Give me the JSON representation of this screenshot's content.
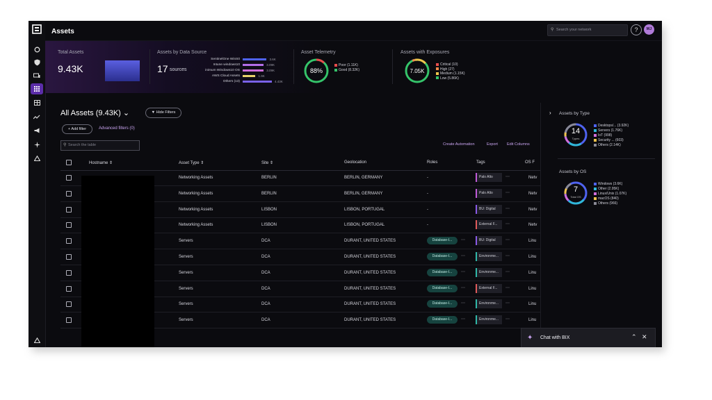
{
  "header": {
    "title": "Assets",
    "search_placeholder": "Search your network",
    "help": "?",
    "avatar": "MJ"
  },
  "summary": {
    "total_assets": {
      "label": "Total Assets",
      "value": "9.43K"
    },
    "data_sources": {
      "label": "Assets by Data Source",
      "count": "17",
      "unit": "sources",
      "items": [
        {
          "name": "SentinelOne WinS0",
          "value": "3.6K",
          "fraction": 0.82,
          "color": "#4f63f0"
        },
        {
          "name": "Intune windows10",
          "value": "3.09K",
          "fraction": 0.72,
          "color": "#b46ee8"
        },
        {
          "name": "inimum Windows10 OS",
          "value": "3.09K",
          "fraction": 0.72,
          "color": "#d06edb"
        },
        {
          "name": "AWS Cloud Assets",
          "value": "1.9K",
          "fraction": 0.44,
          "color": "#e8d36a"
        },
        {
          "name": "Others (13)",
          "value": "4.43K",
          "fraction": 1.0,
          "color": "#7a62e8"
        }
      ]
    },
    "telemetry": {
      "label": "Asset Telemetry",
      "center": "88%",
      "legend": [
        {
          "label": "Poor (1.11K)",
          "color": "#e74c4c"
        },
        {
          "label": "Good (8.32K)",
          "color": "#35c46a"
        }
      ]
    },
    "exposures": {
      "label": "Assets with Exposures",
      "center": "7.05K",
      "legend": [
        {
          "label": "Critical (10)",
          "color": "#e74c4c"
        },
        {
          "label": "High (27)",
          "color": "#f08a4b"
        },
        {
          "label": "Medium (1.15K)",
          "color": "#f0c44b"
        },
        {
          "label": "Low (5.86K)",
          "color": "#35c46a"
        }
      ]
    }
  },
  "main": {
    "title": "All Assets (9.43K)",
    "hide_filters": "Hide Filters",
    "add_filter": "+ Add filter",
    "advanced_filters": "Advanced filters (0)",
    "search_placeholder": "Search the table",
    "actions": [
      "Create Automation",
      "Export",
      "Edit Columns"
    ]
  },
  "table": {
    "columns": [
      "Hostname",
      "Asset Type",
      "Site",
      "Geolocation",
      "Roles",
      "Tags",
      "OS F"
    ],
    "rows": [
      {
        "type": "Networking Assets",
        "site": "BERLIN",
        "geo": "BERLIN, GERMANY",
        "role": "-",
        "tag": "Palo Alto",
        "tag_color": "#c05ad8",
        "os": "Netv"
      },
      {
        "type": "Networking Assets",
        "site": "BERLIN",
        "geo": "BERLIN, GERMANY",
        "role": "-",
        "tag": "Palo Alto",
        "tag_color": "#c05ad8",
        "os": "Netv"
      },
      {
        "type": "Networking Assets",
        "site": "LISBON",
        "geo": "LISBON, PORTUGAL",
        "role": "-",
        "tag": "BU: Digital",
        "tag_color": "#8a5ae8",
        "os": "Netv"
      },
      {
        "type": "Networking Assets",
        "site": "LISBON",
        "geo": "LISBON, PORTUGAL",
        "role": "-",
        "tag": "External F...",
        "tag_color": "#e05a5a",
        "os": "Netv"
      },
      {
        "type": "Servers",
        "site": "DCA",
        "geo": "DURANT, UNITED STATES",
        "role": "Database-I...",
        "tag": "BU: Digital",
        "tag_color": "#8a5ae8",
        "os": "Linu"
      },
      {
        "type": "Servers",
        "site": "DCA",
        "geo": "DURANT, UNITED STATES",
        "role": "Database-I...",
        "tag": "Environme...",
        "tag_color": "#2fb8a8",
        "os": "Linu"
      },
      {
        "type": "Servers",
        "site": "DCA",
        "geo": "DURANT, UNITED STATES",
        "role": "Database-I...",
        "tag": "Environme...",
        "tag_color": "#2fb8a8",
        "os": "Linu"
      },
      {
        "type": "Servers",
        "site": "DCA",
        "geo": "DURANT, UNITED STATES",
        "role": "Database-I...",
        "tag": "External F...",
        "tag_color": "#e05a5a",
        "os": "Linu"
      },
      {
        "type": "Servers",
        "site": "DCA",
        "geo": "DURANT, UNITED STATES",
        "role": "Database-I...",
        "tag": "Environme...",
        "tag_color": "#2fb8a8",
        "os": "Linu"
      },
      {
        "type": "Servers",
        "site": "DCA",
        "geo": "DURANT, UNITED STATES",
        "role": "Database-I...",
        "tag": "Environme...",
        "tag_color": "#2fb8a8",
        "os": "Linu"
      }
    ]
  },
  "right": {
    "by_type": {
      "title": "Assets by Type",
      "center": "14",
      "sub": "Types",
      "legend": [
        {
          "label": "Desktops/... (3.92K)",
          "color": "#4f63f0"
        },
        {
          "label": "Servers (1.76K)",
          "color": "#2fb8d8"
        },
        {
          "label": "IoT (998)",
          "color": "#d06edb"
        },
        {
          "label": "Security ... (603)",
          "color": "#f0c44b"
        },
        {
          "label": "Others (2.14K)",
          "color": "#8a8a95"
        }
      ]
    },
    "by_os": {
      "title": "Assets by OS",
      "center": "7",
      "sub": "Total OS",
      "legend": [
        {
          "label": "Windows (3.6K)",
          "color": "#4f63f0"
        },
        {
          "label": "Other (2.95K)",
          "color": "#2fb8d8"
        },
        {
          "label": "Linux/Unix (1.07K)",
          "color": "#d06edb"
        },
        {
          "label": "macOS (840)",
          "color": "#f0c44b"
        },
        {
          "label": "Others (966)",
          "color": "#8a8a95"
        }
      ]
    }
  },
  "chat": {
    "label": "Chat with BIX"
  }
}
